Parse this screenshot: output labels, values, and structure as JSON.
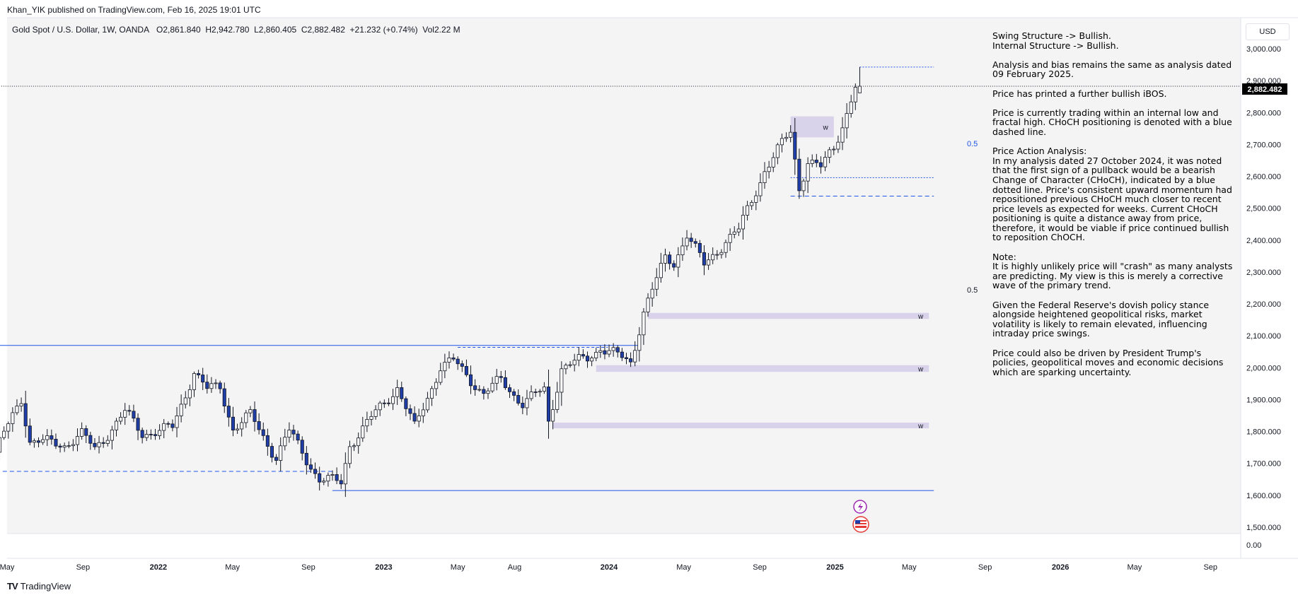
{
  "publish_bar": "Khan_YIK published on TradingView.com, Feb 16, 2025 19:01 UTC",
  "header": {
    "symbol": "Gold Spot / U.S. Dollar, 1W, OANDA",
    "ohlc": "O2,861.840  H2,942.780  L2,860.405  C2,882.482  +21.232 (+0.74%)  Vol2.22 M"
  },
  "currency": "USD",
  "last_price_label": "2,882.482",
  "axis_extra": "0.00",
  "fib_labels": [
    "0.5",
    "0.5"
  ],
  "annotation": [
    "Swing Structure -> Bullish.\nInternal Structure -> Bullish.",
    "Analysis and bias remains the same as analysis dated 09 February 2025.",
    "Price has printed a further bullish iBOS.",
    "Price is currently trading within an internal low and fractal high.  CHoCH positioning is denoted with a blue dashed line.",
    "Price Action Analysis:\nIn my analysis dated 27 October 2024, it was noted that the first sign of a pullback would be a bearish Change of Character (CHoCH), indicated by a blue dotted line. Price's consistent upward momentum had repositioned previous CHoCH much closer to recent price levels as expected for weeks. Current CHoCH positioning is quite a distance away from price, therefore, it would be viable if price continued bullish to reposition ChOCH.",
    "Note:\nIt is highly unlikely price will \"crash\" as many analysts are predicting.  My view is this is merely a corrective wave of the primary trend.",
    "Given the Federal Reserve's dovish policy stance alongside heightened geopolitical risks, market volatility is likely to remain elevated, influencing intraday price swings.",
    "Price could also be driven by President Trump's policies, geopolitical moves and economic decisions which are sparking uncertainty."
  ],
  "footer": {
    "logo": "TV",
    "brand": "TradingView"
  },
  "colors": {
    "bull": "#ffffff",
    "bear": "#1f3ea8",
    "wick": "#131722",
    "zone": "#d8d2ea",
    "structure_line": "#1e53e5",
    "plot_bg": "#f5f4f5"
  },
  "chart_data": {
    "type": "candlestick",
    "symbol": "XAUUSD",
    "timeframe": "1W",
    "ylim": [
      1500,
      3000
    ],
    "y_ticks": [
      1500,
      1600,
      1700,
      1800,
      1900,
      2000,
      2100,
      2200,
      2300,
      2400,
      2500,
      2600,
      2700,
      2800,
      2900,
      3000
    ],
    "y_tick_labels": [
      "1,500.000",
      "1,600.000",
      "1,700.000",
      "1,800.000",
      "1,900.000",
      "2,000.000",
      "2,100.000",
      "2,200.000",
      "2,300.000",
      "2,400.000",
      "2,500.000",
      "2,600.000",
      "2,700.000",
      "2,800.000",
      "2,900.000",
      "3,000.000"
    ],
    "x_start": "2021-05-01",
    "x_end": "2026-10-20",
    "x_ticks": [
      {
        "date": "2021-05-01",
        "label": "May"
      },
      {
        "date": "2021-09-01",
        "label": "Sep"
      },
      {
        "date": "2022-01-01",
        "label": "2022"
      },
      {
        "date": "2022-05-01",
        "label": "May"
      },
      {
        "date": "2022-09-01",
        "label": "Sep"
      },
      {
        "date": "2023-01-01",
        "label": "2023"
      },
      {
        "date": "2023-05-01",
        "label": "May"
      },
      {
        "date": "2023-08-01",
        "label": "Aug"
      },
      {
        "date": "2024-01-01",
        "label": "2024"
      },
      {
        "date": "2024-05-01",
        "label": "May"
      },
      {
        "date": "2024-09-01",
        "label": "Sep"
      },
      {
        "date": "2025-01-01",
        "label": "2025"
      },
      {
        "date": "2025-05-01",
        "label": "May"
      },
      {
        "date": "2025-09-01",
        "label": "Sep"
      },
      {
        "date": "2026-01-01",
        "label": "2026"
      },
      {
        "date": "2026-05-01",
        "label": "May"
      },
      {
        "date": "2026-09-01",
        "label": "Sep"
      }
    ],
    "anchors": [
      {
        "date": "2021-04-19",
        "close": 1735
      },
      {
        "date": "2021-05-31",
        "close": 1905
      },
      {
        "date": "2021-06-14",
        "close": 1770
      },
      {
        "date": "2021-08-09",
        "close": 1760
      },
      {
        "date": "2021-09-06",
        "close": 1790
      },
      {
        "date": "2021-09-27",
        "close": 1745
      },
      {
        "date": "2021-11-15",
        "close": 1860
      },
      {
        "date": "2021-12-13",
        "close": 1795
      },
      {
        "date": "2022-01-31",
        "close": 1810
      },
      {
        "date": "2022-03-07",
        "close": 1990
      },
      {
        "date": "2022-03-28",
        "close": 1930
      },
      {
        "date": "2022-04-18",
        "close": 1940
      },
      {
        "date": "2022-05-09",
        "close": 1810
      },
      {
        "date": "2022-06-06",
        "close": 1850
      },
      {
        "date": "2022-07-18",
        "close": 1720
      },
      {
        "date": "2022-08-08",
        "close": 1800
      },
      {
        "date": "2022-09-26",
        "close": 1650
      },
      {
        "date": "2022-10-31",
        "close": 1640
      },
      {
        "date": "2022-11-14",
        "close": 1760
      },
      {
        "date": "2023-01-30",
        "close": 1940
      },
      {
        "date": "2023-02-27",
        "close": 1810
      },
      {
        "date": "2023-04-10",
        "close": 2005
      },
      {
        "date": "2023-05-01",
        "close": 2020
      },
      {
        "date": "2023-06-19",
        "close": 1920
      },
      {
        "date": "2023-07-17",
        "close": 1960
      },
      {
        "date": "2023-08-21",
        "close": 1890
      },
      {
        "date": "2023-09-25",
        "close": 1930
      },
      {
        "date": "2023-10-02",
        "close": 1830
      },
      {
        "date": "2023-10-23",
        "close": 2000
      },
      {
        "date": "2023-12-04",
        "close": 2030
      },
      {
        "date": "2023-12-25",
        "close": 2065
      },
      {
        "date": "2024-02-12",
        "close": 2015
      },
      {
        "date": "2024-03-04",
        "close": 2180
      },
      {
        "date": "2024-04-08",
        "close": 2340
      },
      {
        "date": "2024-04-22",
        "close": 2330
      },
      {
        "date": "2024-05-13",
        "close": 2420
      },
      {
        "date": "2024-06-10",
        "close": 2320
      },
      {
        "date": "2024-07-15",
        "close": 2400
      },
      {
        "date": "2024-08-05",
        "close": 2430
      },
      {
        "date": "2024-09-16",
        "close": 2620
      },
      {
        "date": "2024-10-28",
        "close": 2740
      },
      {
        "date": "2024-11-11",
        "close": 2565
      },
      {
        "date": "2024-11-25",
        "close": 2650
      },
      {
        "date": "2024-12-16",
        "close": 2625
      },
      {
        "date": "2025-01-06",
        "close": 2690
      },
      {
        "date": "2025-01-27",
        "close": 2800
      },
      {
        "date": "2025-02-10",
        "close": 2882
      }
    ],
    "levels": [
      {
        "name": "zone-w-1",
        "type": "zone",
        "from": "2024-03-04",
        "to": "2025-06-02",
        "low": 2153,
        "high": 2172,
        "label": "w"
      },
      {
        "name": "zone-w-2",
        "type": "zone",
        "from": "2023-12-11",
        "to": "2025-06-02",
        "low": 1987,
        "high": 2008,
        "label": "w"
      },
      {
        "name": "zone-w-3",
        "type": "zone",
        "from": "2023-10-02",
        "to": "2025-06-02",
        "low": 1810,
        "high": 1828,
        "label": "w"
      },
      {
        "name": "zone-w-4",
        "type": "zone",
        "from": "2024-10-21",
        "to": "2024-12-30",
        "low": 2722,
        "high": 2788,
        "label": "w"
      }
    ]
  }
}
